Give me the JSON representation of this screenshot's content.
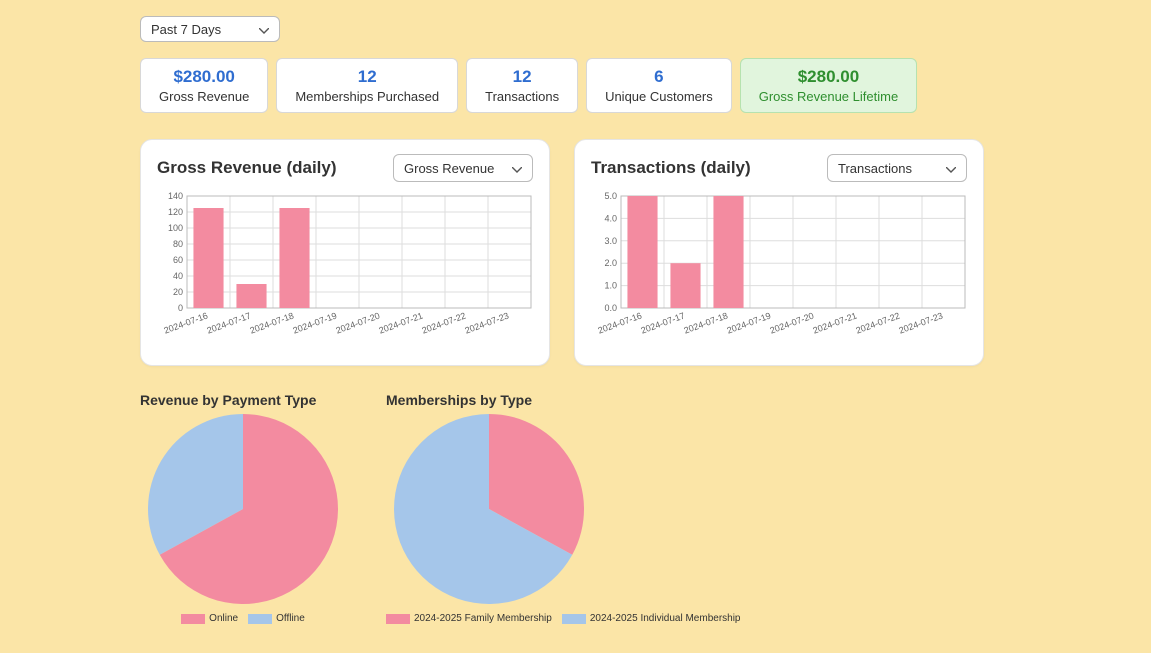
{
  "filter": {
    "label": "Past 7 Days"
  },
  "kpis": [
    {
      "value": "$280.00",
      "label": "Gross Revenue",
      "variant": "default"
    },
    {
      "value": "12",
      "label": "Memberships Purchased",
      "variant": "default"
    },
    {
      "value": "12",
      "label": "Transactions",
      "variant": "default"
    },
    {
      "value": "6",
      "label": "Unique Customers",
      "variant": "default"
    },
    {
      "value": "$280.00",
      "label": "Gross Revenue Lifetime",
      "variant": "green"
    }
  ],
  "revenue_chart": {
    "title": "Gross Revenue (daily)",
    "dropdown": "Gross Revenue",
    "type": "bar",
    "categories": [
      "2024-07-16",
      "2024-07-17",
      "2024-07-18",
      "2024-07-19",
      "2024-07-20",
      "2024-07-21",
      "2024-07-22",
      "2024-07-23"
    ],
    "values": [
      125,
      30,
      125,
      0,
      0,
      0,
      0,
      0
    ],
    "bar_color": "#f38ba0",
    "grid_color": "#dddddd",
    "axis_color": "#bbbbbb",
    "text_color": "#666666",
    "ylim": [
      0,
      140
    ],
    "ytick_step": 20,
    "bar_width": 0.7,
    "tick_fontsize": 9
  },
  "transactions_chart": {
    "title": "Transactions (daily)",
    "dropdown": "Transactions",
    "type": "bar",
    "categories": [
      "2024-07-16",
      "2024-07-17",
      "2024-07-18",
      "2024-07-19",
      "2024-07-20",
      "2024-07-21",
      "2024-07-22",
      "2024-07-23"
    ],
    "values": [
      5,
      2,
      5,
      0,
      0,
      0,
      0,
      0
    ],
    "bar_color": "#f38ba0",
    "grid_color": "#dddddd",
    "axis_color": "#bbbbbb",
    "text_color": "#666666",
    "ylim": [
      0,
      5
    ],
    "ytick_step": 1,
    "y_decimals": 1,
    "bar_width": 0.7,
    "tick_fontsize": 9
  },
  "pie_payment": {
    "title": "Revenue by Payment Type",
    "type": "pie",
    "diameter": 190,
    "slices": [
      {
        "label": "Online",
        "value": 67,
        "color": "#f38ba0"
      },
      {
        "label": "Offline",
        "value": 33,
        "color": "#a5c6ea"
      }
    ],
    "start_angle_deg": -90,
    "legend_fontsize": 10
  },
  "pie_membership": {
    "title": "Memberships by Type",
    "type": "pie",
    "diameter": 190,
    "slices": [
      {
        "label": "2024-2025 Family Membership",
        "value": 33,
        "color": "#f38ba0"
      },
      {
        "label": "2024-2025 Individual Membership",
        "value": 67,
        "color": "#a5c6ea"
      }
    ],
    "start_angle_deg": -90,
    "legend_fontsize": 10
  }
}
